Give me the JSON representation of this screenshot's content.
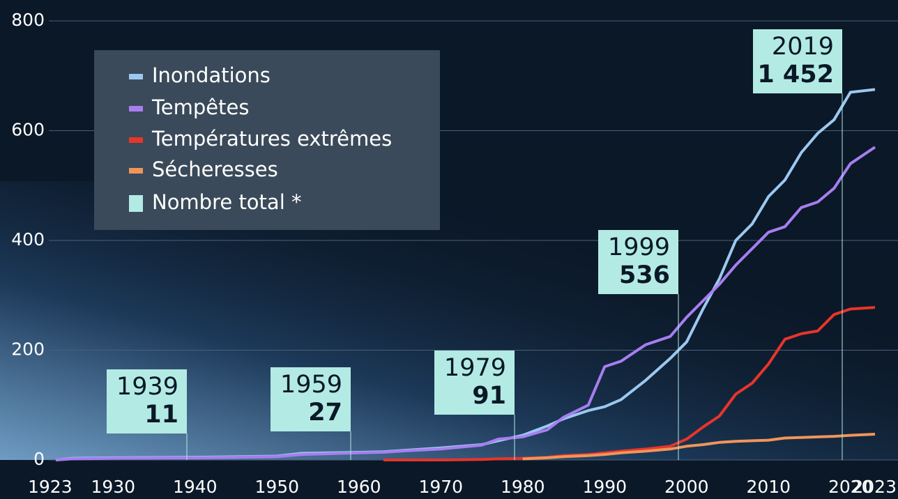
{
  "chart_data": {
    "type": "line",
    "x": [
      1923,
      1925,
      1930,
      1940,
      1950,
      1953,
      1960,
      1963,
      1965,
      1970,
      1975,
      1977,
      1980,
      1983,
      1985,
      1988,
      1990,
      1992,
      1995,
      1998,
      2000,
      2002,
      2004,
      2006,
      2008,
      2010,
      2012,
      2014,
      2016,
      2018,
      2020,
      2023
    ],
    "series": [
      {
        "name": "Inondations",
        "color": "#9cc8f0",
        "values": [
          0,
          3,
          4,
          5,
          7,
          12,
          14,
          15,
          17,
          22,
          28,
          35,
          45,
          62,
          75,
          90,
          97,
          110,
          145,
          185,
          215,
          275,
          330,
          400,
          430,
          480,
          510,
          560,
          595,
          620,
          670,
          675
        ]
      },
      {
        "name": "Tempêtes",
        "color": "#a77ef0",
        "values": [
          0,
          2,
          3,
          4,
          6,
          10,
          13,
          14,
          16,
          20,
          27,
          38,
          42,
          55,
          78,
          100,
          170,
          180,
          210,
          225,
          260,
          290,
          320,
          355,
          385,
          415,
          425,
          460,
          470,
          495,
          540,
          570
        ]
      },
      {
        "name": "Températures extrêmes",
        "color": "#e8352a",
        "values": [
          null,
          null,
          null,
          null,
          null,
          null,
          null,
          0,
          0,
          0,
          1,
          2,
          3,
          5,
          8,
          10,
          13,
          16,
          20,
          25,
          38,
          60,
          80,
          120,
          140,
          175,
          220,
          230,
          235,
          265,
          275,
          278
        ]
      },
      {
        "name": "Sécheresses",
        "color": "#f0955a",
        "values": [
          null,
          null,
          null,
          null,
          null,
          null,
          null,
          null,
          null,
          null,
          null,
          null,
          2,
          4,
          6,
          8,
          10,
          13,
          16,
          20,
          25,
          28,
          32,
          34,
          35,
          36,
          40,
          41,
          42,
          43,
          45,
          47
        ]
      }
    ],
    "total_label": "Nombre total *",
    "total_color": "#b3ebe4",
    "annotations": [
      {
        "x": 1939,
        "total": 11
      },
      {
        "x": 1959,
        "total": 27
      },
      {
        "x": 1979,
        "total": 91
      },
      {
        "x": 1999,
        "total": 536
      },
      {
        "x": 2019,
        "total": {
          "value": 1452,
          "label": "1 452"
        }
      }
    ],
    "xlim": [
      1923,
      2023
    ],
    "xticks": [
      1923,
      1930,
      1940,
      1950,
      1960,
      1970,
      1980,
      1990,
      2000,
      2010,
      2020,
      2023
    ],
    "ylim": [
      0,
      800
    ],
    "yticks": [
      0,
      200,
      400,
      600,
      800
    ],
    "grid": true
  }
}
